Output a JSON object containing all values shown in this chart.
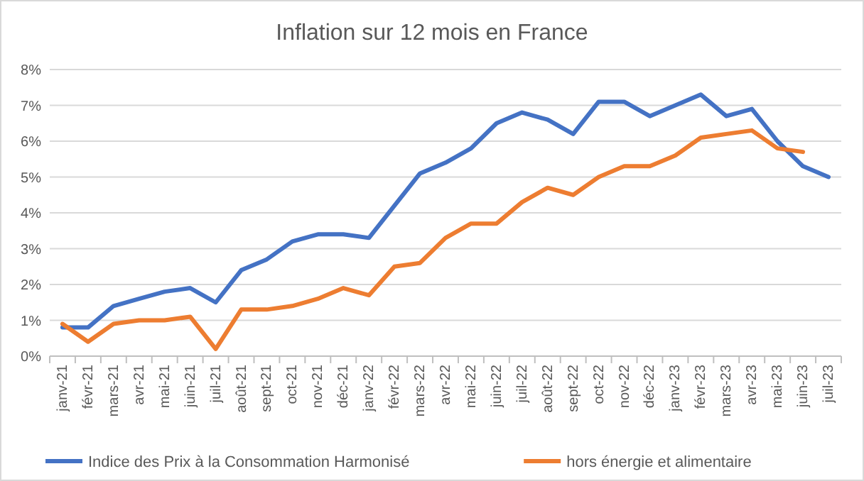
{
  "chart_data": {
    "type": "line",
    "title": "Inflation sur 12 mois en France",
    "categories": [
      "janv-21",
      "févr-21",
      "mars-21",
      "avr-21",
      "mai-21",
      "juin-21",
      "juil-21",
      "août-21",
      "sept-21",
      "oct-21",
      "nov-21",
      "déc-21",
      "janv-22",
      "févr-22",
      "mars-22",
      "avr-22",
      "mai-22",
      "juin-22",
      "juil-22",
      "août-22",
      "sept-22",
      "oct-22",
      "nov-22",
      "déc-22",
      "janv-23",
      "févr-23",
      "mars-23",
      "avr-23",
      "mai-23",
      "juin-23",
      "juil-23"
    ],
    "series": [
      {
        "name": "Indice des Prix à la Consommation Harmonisé",
        "color": "#4472c4",
        "values": [
          0.8,
          0.8,
          1.4,
          1.6,
          1.8,
          1.9,
          1.5,
          2.4,
          2.7,
          3.2,
          3.4,
          3.4,
          3.3,
          4.2,
          5.1,
          5.4,
          5.8,
          6.5,
          6.8,
          6.6,
          6.2,
          7.1,
          7.1,
          6.7,
          7.0,
          7.3,
          6.7,
          6.9,
          6.0,
          5.3,
          5.0
        ]
      },
      {
        "name": "hors énergie et alimentaire",
        "color": "#ed7d31",
        "values": [
          0.9,
          0.4,
          0.9,
          1.0,
          1.0,
          1.1,
          0.2,
          1.3,
          1.3,
          1.4,
          1.6,
          1.9,
          1.7,
          2.5,
          2.6,
          3.3,
          3.7,
          3.7,
          4.3,
          4.7,
          4.5,
          5.0,
          5.3,
          5.3,
          5.6,
          6.1,
          6.2,
          6.3,
          5.8,
          5.7,
          null
        ]
      }
    ],
    "ylim": [
      0,
      8
    ],
    "yticks": [
      {
        "value": 0,
        "label": "0%"
      },
      {
        "value": 1,
        "label": "1%"
      },
      {
        "value": 2,
        "label": "2%"
      },
      {
        "value": 3,
        "label": "3%"
      },
      {
        "value": 4,
        "label": "4%"
      },
      {
        "value": 5,
        "label": "5%"
      },
      {
        "value": 6,
        "label": "6%"
      },
      {
        "value": 7,
        "label": "7%"
      },
      {
        "value": 8,
        "label": "8%"
      }
    ],
    "grid": "y",
    "legend": "bottom",
    "marker": "none",
    "line_style": "solid"
  }
}
